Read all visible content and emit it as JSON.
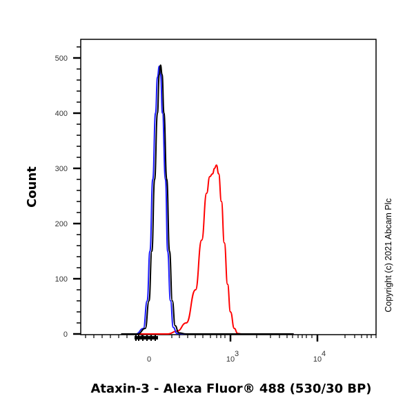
{
  "chart_data": {
    "type": "line",
    "subtype": "flow-cytometry-histogram",
    "title": "",
    "xlabel": "Ataxin-3 - Alexa Fluor® 488 (530/30 BP)",
    "ylabel": "Count",
    "x_scale": "biexponential",
    "x_ticks": [
      {
        "label": "0",
        "value": 0
      },
      {
        "label": "10",
        "sup": "3",
        "value": 1000
      },
      {
        "label": "10",
        "sup": "4",
        "value": 10000
      }
    ],
    "y_ticks": [
      0,
      100,
      200,
      300,
      400,
      500
    ],
    "ylim": [
      0,
      535
    ],
    "grid": false,
    "legend": null,
    "series": [
      {
        "name": "black-control",
        "color": "#000000",
        "points": [
          [
            -150,
            0
          ],
          [
            -60,
            0
          ],
          [
            -20,
            10
          ],
          [
            0,
            60
          ],
          [
            15,
            150
          ],
          [
            30,
            280
          ],
          [
            45,
            400
          ],
          [
            55,
            470
          ],
          [
            62,
            487
          ],
          [
            70,
            470
          ],
          [
            80,
            400
          ],
          [
            95,
            280
          ],
          [
            110,
            150
          ],
          [
            125,
            60
          ],
          [
            140,
            15
          ],
          [
            160,
            2
          ],
          [
            200,
            0
          ],
          [
            10000,
            0
          ]
        ]
      },
      {
        "name": "blue-control",
        "color": "#1a1aff",
        "points": [
          [
            -150,
            0
          ],
          [
            -70,
            0
          ],
          [
            -30,
            10
          ],
          [
            -10,
            60
          ],
          [
            5,
            150
          ],
          [
            20,
            280
          ],
          [
            35,
            400
          ],
          [
            45,
            465
          ],
          [
            55,
            485
          ],
          [
            62,
            470
          ],
          [
            72,
            400
          ],
          [
            88,
            280
          ],
          [
            100,
            150
          ],
          [
            115,
            60
          ],
          [
            130,
            12
          ],
          [
            150,
            1
          ],
          [
            200,
            0
          ],
          [
            10000,
            0
          ]
        ]
      },
      {
        "name": "ataxin-3-stained",
        "color": "#ff0000",
        "points": [
          [
            -150,
            0
          ],
          [
            100,
            0
          ],
          [
            150,
            5
          ],
          [
            200,
            20
          ],
          [
            280,
            80
          ],
          [
            350,
            170
          ],
          [
            420,
            255
          ],
          [
            470,
            285
          ],
          [
            520,
            290
          ],
          [
            560,
            300
          ],
          [
            600,
            306
          ],
          [
            650,
            290
          ],
          [
            720,
            240
          ],
          [
            800,
            165
          ],
          [
            900,
            90
          ],
          [
            1000,
            40
          ],
          [
            1150,
            10
          ],
          [
            1300,
            1
          ],
          [
            1500,
            0
          ],
          [
            10000,
            0
          ]
        ]
      }
    ]
  },
  "copyright": "Copyright (c) 2021 Abcam Plc"
}
